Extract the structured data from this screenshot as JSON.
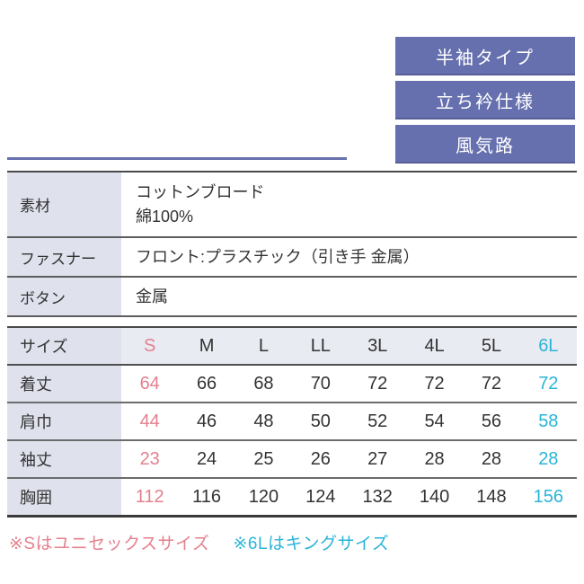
{
  "colors": {
    "badge_bg": "#6670ae",
    "badge_text": "#ffffff",
    "accent_line": "#6770ae",
    "label_cell_bg": "#dfe1ed",
    "header_row_bg": "#e9ebf3",
    "size_s_highlight": "#e4808e",
    "size_6l_highlight": "#2ab5d8",
    "body_text": "#333333"
  },
  "badges": [
    {
      "label": "半袖タイプ"
    },
    {
      "label": "立ち衿仕様"
    },
    {
      "label": "風気路"
    }
  ],
  "spec_table": {
    "rows": [
      {
        "label": "素材",
        "value_line1": "コットンブロード",
        "value_line2": "綿100%"
      },
      {
        "label": "ファスナー",
        "value_line1": "フロント:プラスチック（引き手 金属）",
        "value_line2": ""
      },
      {
        "label": "ボタン",
        "value_line1": "金属",
        "value_line2": ""
      }
    ]
  },
  "size_table": {
    "header": {
      "label": "サイズ",
      "cols": [
        "S",
        "M",
        "L",
        "LL",
        "3L",
        "4L",
        "5L",
        "6L"
      ]
    },
    "rows": [
      {
        "label": "着丈",
        "values": [
          "64",
          "66",
          "68",
          "70",
          "72",
          "72",
          "72",
          "72"
        ]
      },
      {
        "label": "肩巾",
        "values": [
          "44",
          "46",
          "48",
          "50",
          "52",
          "54",
          "56",
          "58"
        ]
      },
      {
        "label": "袖丈",
        "values": [
          "23",
          "24",
          "25",
          "26",
          "27",
          "28",
          "28",
          "28"
        ]
      },
      {
        "label": "胸囲",
        "values": [
          "112",
          "116",
          "120",
          "124",
          "132",
          "140",
          "148",
          "156"
        ]
      }
    ]
  },
  "notes": [
    {
      "text": "※Sはユニセックスサイズ"
    },
    {
      "text": "※6Lはキングサイズ"
    }
  ]
}
